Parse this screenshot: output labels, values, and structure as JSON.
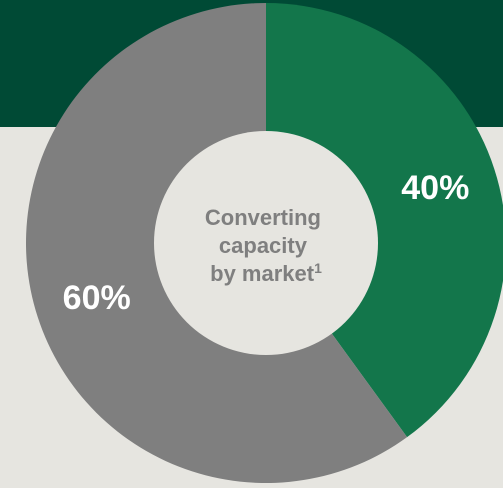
{
  "colors": {
    "background": "#e6e5e0",
    "top_band": "#004a35",
    "hole": "#e6e5e0",
    "center_text": "#7f7f7f"
  },
  "chart_data": {
    "type": "pie",
    "style": "donut",
    "title": "",
    "center_label": {
      "line1": "Converting",
      "line2": "capacity",
      "line3_text": "by market",
      "line3_superscript": "1"
    },
    "slices": [
      {
        "value": 40,
        "label": "40%",
        "color": "#13764b"
      },
      {
        "value": 60,
        "label": "60%",
        "color": "#7f7f7f"
      }
    ],
    "start_angle_deg": 0,
    "direction": "clockwise",
    "legend": "none"
  }
}
